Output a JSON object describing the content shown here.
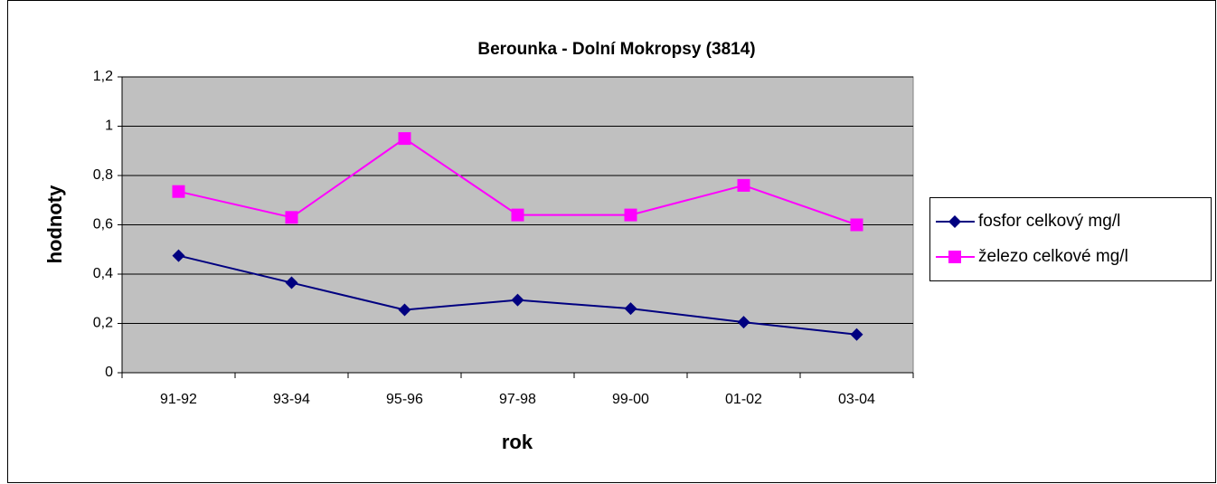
{
  "chart_data": {
    "type": "line",
    "title": "Berounka - Dolní Mokropsy (3814)",
    "x_label": "rok",
    "y_label": "hodnoty",
    "categories": [
      "91-92",
      "93-94",
      "95-96",
      "97-98",
      "99-00",
      "01-02",
      "03-04"
    ],
    "series": [
      {
        "name": "fosfor celkový mg/l",
        "color": "#000080",
        "marker": "diamond",
        "values": [
          0.475,
          0.365,
          0.255,
          0.295,
          0.26,
          0.205,
          0.155
        ]
      },
      {
        "name": "železo celkové mg/l",
        "color": "#ff00ff",
        "marker": "square",
        "values": [
          0.735,
          0.63,
          0.95,
          0.64,
          0.64,
          0.76,
          0.6
        ]
      }
    ],
    "ylim": [
      0,
      1.2
    ],
    "yticks": [
      0,
      {
        "value": 0.2,
        "label": "0,2"
      },
      {
        "value": 0.4,
        "label": "0,4"
      },
      {
        "value": 0.6,
        "label": "0,6"
      },
      {
        "value": 0.8,
        "label": "0,8"
      },
      1,
      {
        "value": 1.2,
        "label": "1,2"
      }
    ],
    "grid": true,
    "legend": "right"
  }
}
